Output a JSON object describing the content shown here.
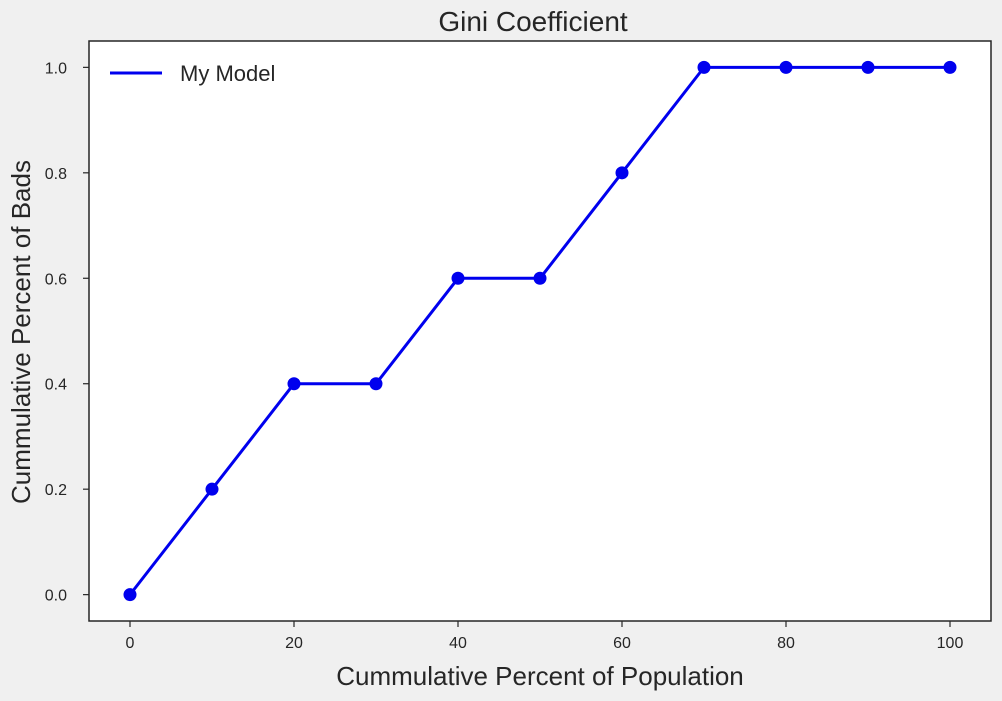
{
  "chart_data": {
    "type": "line",
    "title": "Gini Coefficient",
    "xlabel": "Cummulative Percent of Population",
    "ylabel": "Cummulative Percent of Bads",
    "xlim": [
      -5,
      105
    ],
    "ylim": [
      -0.05,
      1.05
    ],
    "x_ticks": [
      0,
      20,
      40,
      60,
      80,
      100
    ],
    "y_ticks": [
      "0.0",
      "0.2",
      "0.4",
      "0.6",
      "0.8",
      "1.0"
    ],
    "grid": false,
    "legend_position": "top-left",
    "series": [
      {
        "name": "My Model",
        "color": "#0000ee",
        "marker": "circle",
        "x": [
          0,
          10,
          20,
          30,
          40,
          50,
          60,
          70,
          80,
          90,
          100
        ],
        "y": [
          0.0,
          0.2,
          0.4,
          0.4,
          0.6,
          0.6,
          0.8,
          1.0,
          1.0,
          1.0,
          1.0
        ]
      }
    ]
  }
}
